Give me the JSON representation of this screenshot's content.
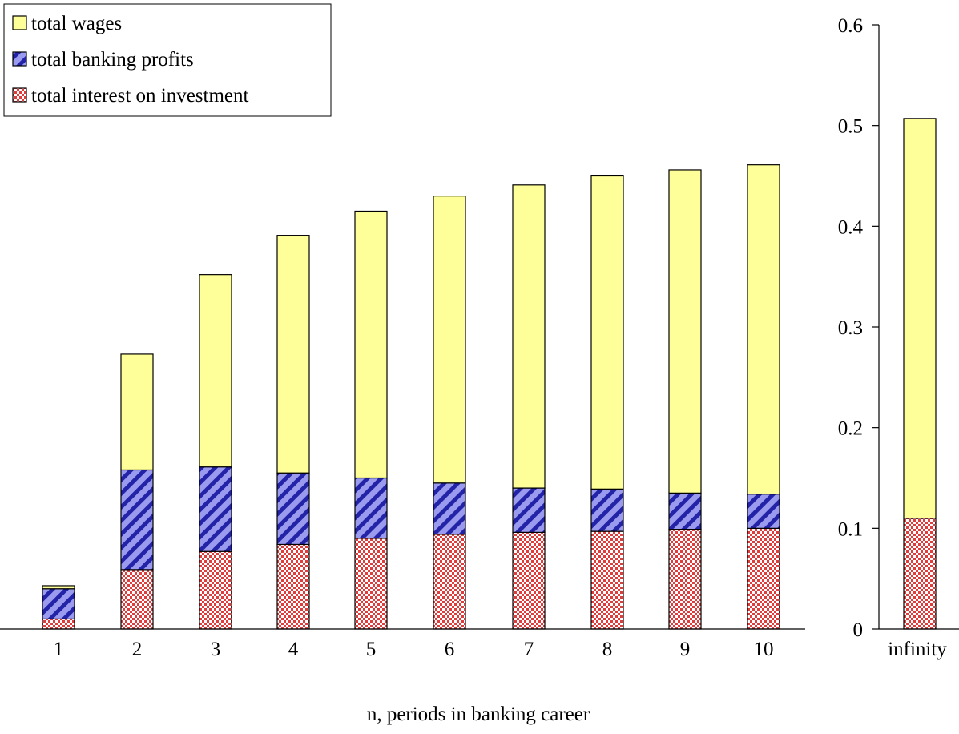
{
  "chart_data": {
    "type": "bar",
    "stacked": true,
    "title": "",
    "xlabel": "n, periods in banking career",
    "ylabel": "",
    "ylim": [
      0,
      0.6
    ],
    "yticks": [
      "0",
      "0.1",
      "0.2",
      "0.3",
      "0.4",
      "0.5",
      "0.6"
    ],
    "y_axis_position": "right",
    "categories": [
      "1",
      "2",
      "3",
      "4",
      "5",
      "6",
      "7",
      "8",
      "9",
      "10",
      "infinity"
    ],
    "series": [
      {
        "name": "total interest on investment",
        "color": "#e03c3c",
        "pattern": "checker",
        "values": [
          0.01,
          0.059,
          0.077,
          0.084,
          0.09,
          0.094,
          0.096,
          0.097,
          0.099,
          0.1,
          0.11
        ]
      },
      {
        "name": "total banking profits",
        "color": "#3b3bcc",
        "pattern": "diagonal-stripes",
        "values": [
          0.03,
          0.099,
          0.084,
          0.071,
          0.06,
          0.051,
          0.044,
          0.042,
          0.036,
          0.034,
          0.0
        ]
      },
      {
        "name": "total wages",
        "color": "#ffff99",
        "pattern": "solid",
        "values": [
          0.003,
          0.115,
          0.191,
          0.236,
          0.265,
          0.285,
          0.301,
          0.311,
          0.321,
          0.327,
          0.397
        ]
      }
    ],
    "legend": {
      "position": "top-left",
      "order": [
        "total wages",
        "total banking profits",
        "total interest on investment"
      ]
    },
    "grid": false
  }
}
